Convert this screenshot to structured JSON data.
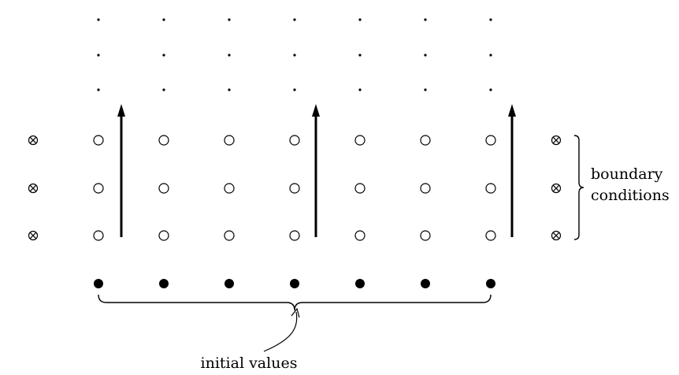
{
  "diagram": {
    "grid_columns": 7,
    "interior_rows": 3,
    "continuation_rows": 3,
    "upward_arrows": 3,
    "labels": {
      "boundary_line1": "boundary",
      "boundary_line2": "conditions",
      "initial_values": "initial values"
    },
    "legend_semantics": {
      "filled-circle": "initial value point",
      "open-circle": "interior grid point",
      "crossed-circle": "boundary condition point",
      "small-dot": "continuation of grid"
    },
    "colors": {
      "stroke": "#000000",
      "background": "#ffffff"
    }
  }
}
